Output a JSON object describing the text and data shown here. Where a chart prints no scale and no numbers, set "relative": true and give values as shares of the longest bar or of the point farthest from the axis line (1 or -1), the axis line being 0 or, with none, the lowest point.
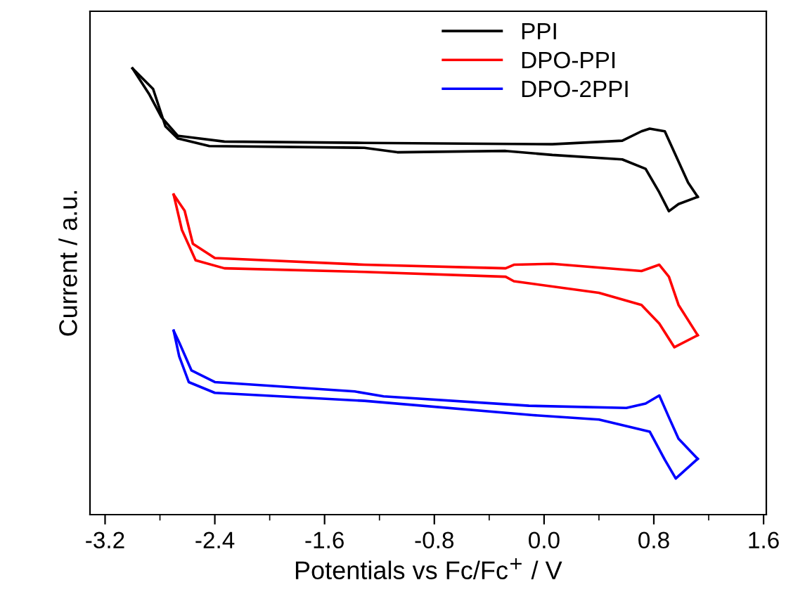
{
  "chart_data": {
    "type": "line",
    "relative": true,
    "xlabel": "Potentials vs Fc/Fc$^{+}$ / V",
    "ylabel": "Current / a.u.",
    "xlim": [
      -3.31,
      1.62
    ],
    "xticks": [
      -3.2,
      -2.4,
      -1.6,
      -0.8,
      {
        "value": 0,
        "label": "0.0"
      },
      0.8,
      1.6
    ],
    "tick_labels": "x",
    "grid": false,
    "legend": "top",
    "marker": "none",
    "line_style": "solid",
    "series": [
      {
        "name": "PPI",
        "color": "#000000",
        "x": [
          -3.0,
          -2.85,
          -2.76,
          -2.67,
          -2.44,
          -1.31,
          -1.07,
          -0.28,
          0.06,
          0.57,
          0.74,
          0.84,
          0.91,
          0.98,
          1.12
        ],
        "values": [
          1.0,
          0.954,
          0.87,
          0.843,
          0.826,
          0.822,
          0.812,
          0.815,
          0.806,
          0.796,
          0.775,
          0.722,
          0.68,
          0.696,
          0.712
        ]
      },
      {
        "color": "#000000",
        "x": [
          -3.0,
          -2.88,
          -2.79,
          -2.67,
          -2.33,
          -1.31,
          0.06,
          0.57,
          0.71,
          0.77,
          0.88,
          1.05,
          1.12
        ],
        "values": [
          1.0,
          0.943,
          0.891,
          0.849,
          0.836,
          0.833,
          0.83,
          0.838,
          0.859,
          0.865,
          0.859,
          0.744,
          0.712
        ]
      },
      {
        "name": "DPO-PPI",
        "color": "#ff0000",
        "x": [
          -2.7,
          -2.62,
          -2.56,
          -2.4,
          -1.31,
          -0.28,
          -0.22,
          0.06,
          0.71,
          0.84,
          0.91,
          0.98,
          1.12
        ],
        "values": [
          0.717,
          0.681,
          0.607,
          0.575,
          0.56,
          0.552,
          0.56,
          0.562,
          0.546,
          0.56,
          0.533,
          0.47,
          0.402
        ]
      },
      {
        "color": "#ff0000",
        "x": [
          -2.7,
          -2.64,
          -2.54,
          -2.33,
          -1.31,
          -0.28,
          -0.22,
          0.4,
          0.71,
          0.84,
          0.95,
          1.12
        ],
        "values": [
          0.717,
          0.638,
          0.57,
          0.552,
          0.544,
          0.533,
          0.523,
          0.497,
          0.47,
          0.428,
          0.375,
          0.402
        ]
      },
      {
        "name": "DPO-2PPI",
        "color": "#0000ff",
        "x": [
          -2.7,
          -2.66,
          -2.57,
          -2.4,
          -1.38,
          -1.17,
          -0.11,
          0.6,
          0.74,
          0.84,
          0.91,
          0.98,
          1.12
        ],
        "values": [
          0.412,
          0.386,
          0.323,
          0.297,
          0.276,
          0.265,
          0.244,
          0.239,
          0.249,
          0.267,
          0.218,
          0.17,
          0.125
        ]
      },
      {
        "color": "#0000ff",
        "x": [
          -2.7,
          -2.66,
          -2.59,
          -2.4,
          -1.31,
          -0.08,
          0.4,
          0.77,
          0.88,
          0.96,
          1.12
        ],
        "values": [
          0.412,
          0.355,
          0.297,
          0.273,
          0.255,
          0.223,
          0.213,
          0.186,
          0.123,
          0.081,
          0.125
        ]
      }
    ]
  }
}
